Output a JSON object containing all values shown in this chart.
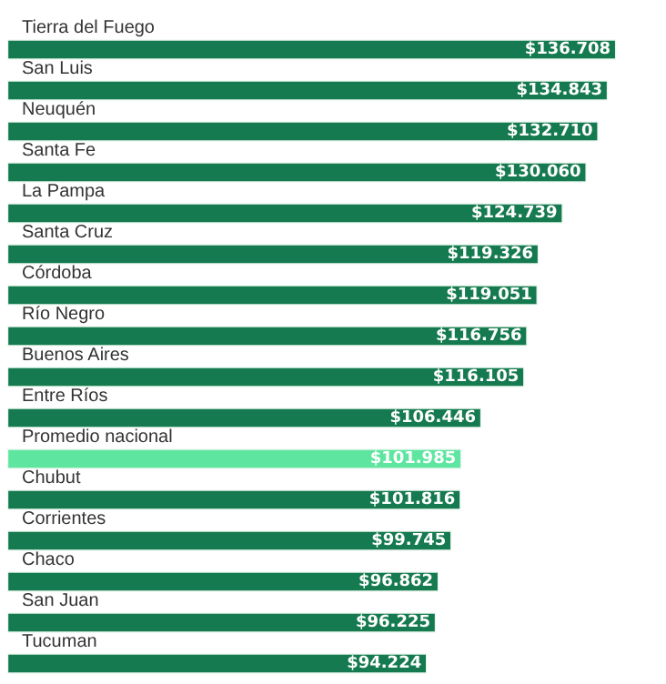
{
  "chart_data": {
    "type": "bar",
    "orientation": "horizontal",
    "categories": [
      "Tierra del Fuego",
      "San Luis",
      "Neuquén",
      "Santa Fe",
      "La Pampa",
      "Santa Cruz",
      "Córdoba",
      "Río Negro",
      "Buenos Aires",
      "Entre Ríos",
      "Promedio nacional",
      "Chubut",
      "Corrientes",
      "Chaco",
      "San Juan",
      "Tucuman"
    ],
    "values": [
      136708,
      134843,
      132710,
      130060,
      124739,
      119326,
      119051,
      116756,
      116105,
      106446,
      101985,
      101816,
      99745,
      96862,
      96225,
      94224
    ],
    "colors": [
      "#157a4f",
      "#157a4f",
      "#157a4f",
      "#157a4f",
      "#157a4f",
      "#157a4f",
      "#157a4f",
      "#157a4f",
      "#157a4f",
      "#157a4f",
      "#5ee6a0",
      "#157a4f",
      "#157a4f",
      "#157a4f",
      "#157a4f",
      "#157a4f"
    ],
    "value_labels": [
      "$136.708",
      "$134.843",
      "$132.710",
      "$130.060",
      "$124.739",
      "$119.326",
      "$119.051",
      "$116.756",
      "$116.105",
      "$106.446",
      "$101.985",
      "$101.816",
      "$99.745",
      "$96.862",
      "$96.225",
      "$94.224"
    ]
  }
}
